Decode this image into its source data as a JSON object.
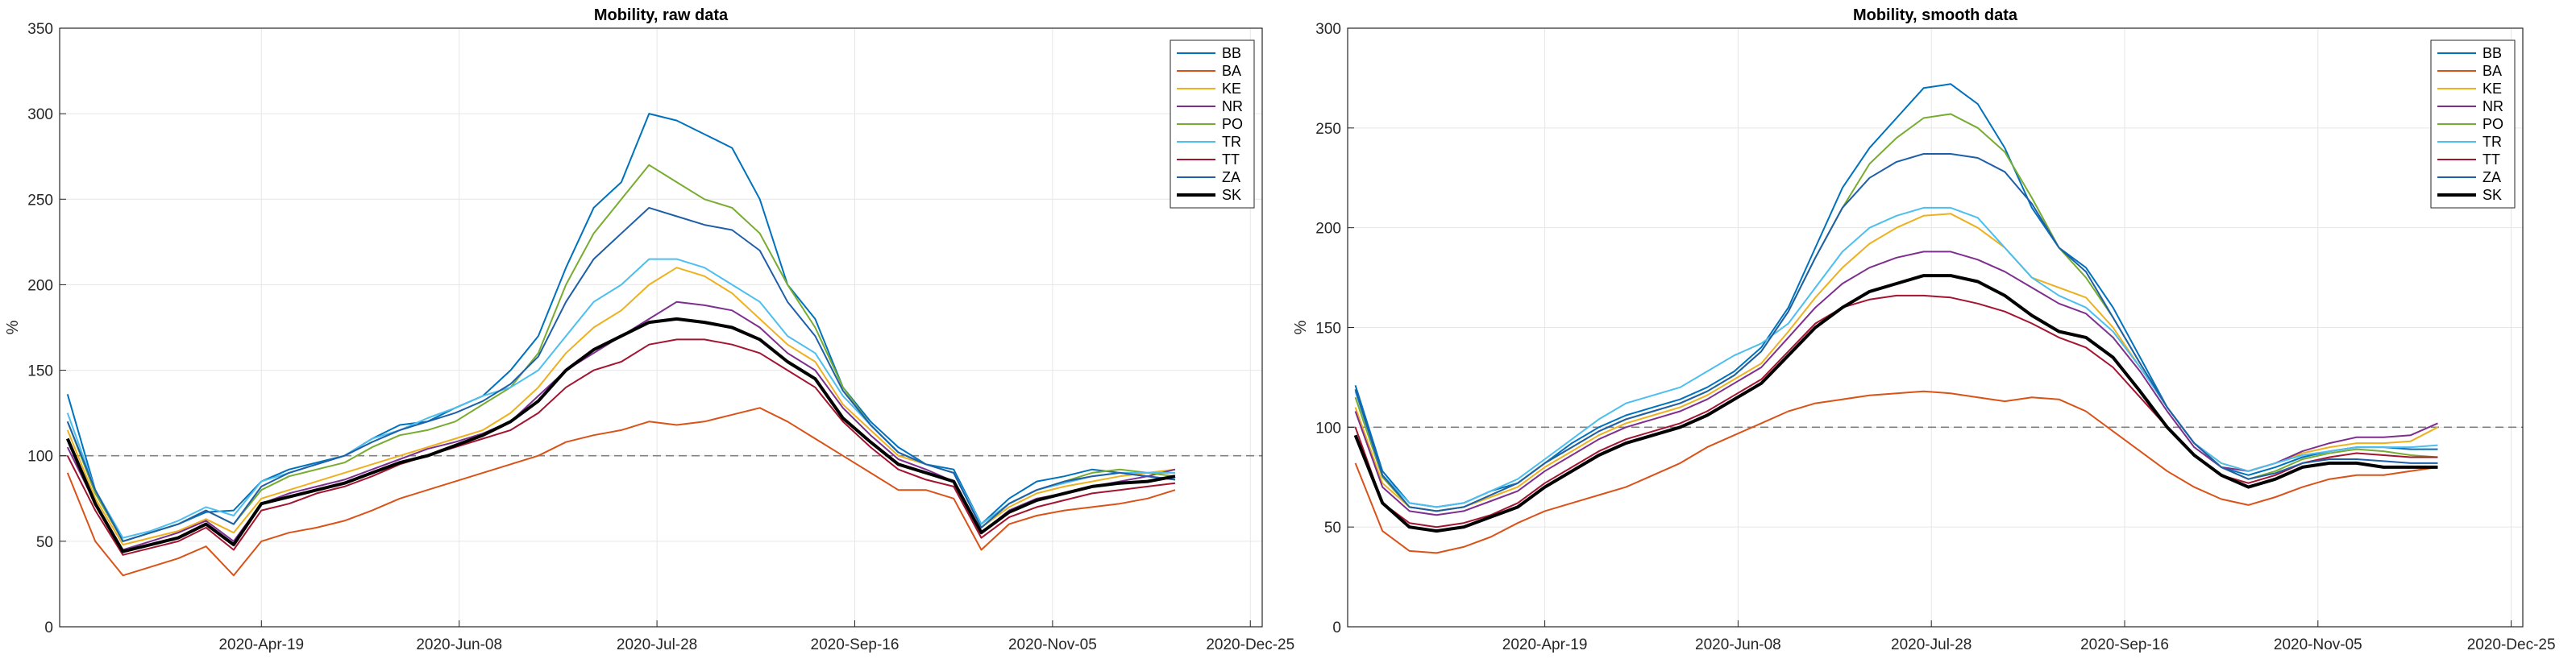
{
  "chart_data": [
    {
      "type": "line",
      "title": "Mobility, raw data",
      "xlabel": "",
      "ylabel": "%",
      "xlim": [
        "2020-02-28",
        "2020-12-28"
      ],
      "ylim": [
        0,
        350
      ],
      "yticks": [
        0,
        50,
        100,
        150,
        200,
        250,
        300,
        350
      ],
      "xticks": [
        "2020-Apr-19",
        "2020-Jun-08",
        "2020-Jul-28",
        "2020-Sep-16",
        "2020-Nov-05",
        "2020-Dec-25"
      ],
      "reference_line": 100,
      "grid": true,
      "legend_location": "top-right",
      "x": [
        "2020-03-01",
        "2020-03-08",
        "2020-03-15",
        "2020-03-22",
        "2020-03-29",
        "2020-04-05",
        "2020-04-12",
        "2020-04-19",
        "2020-04-26",
        "2020-05-03",
        "2020-05-10",
        "2020-05-17",
        "2020-05-24",
        "2020-05-31",
        "2020-06-07",
        "2020-06-14",
        "2020-06-21",
        "2020-06-28",
        "2020-07-05",
        "2020-07-12",
        "2020-07-19",
        "2020-07-26",
        "2020-08-02",
        "2020-08-09",
        "2020-08-16",
        "2020-08-23",
        "2020-08-30",
        "2020-09-06",
        "2020-09-13",
        "2020-09-20",
        "2020-09-27",
        "2020-10-04",
        "2020-10-11",
        "2020-10-18",
        "2020-10-25",
        "2020-11-01",
        "2020-11-08",
        "2020-11-15",
        "2020-11-22",
        "2020-11-29",
        "2020-12-06"
      ],
      "series": [
        {
          "name": "BB",
          "values": [
            136,
            80,
            50,
            55,
            60,
            67,
            68,
            85,
            92,
            96,
            100,
            110,
            118,
            120,
            128,
            135,
            150,
            170,
            210,
            245,
            260,
            300,
            296,
            288,
            280,
            250,
            200,
            180,
            140,
            120,
            105,
            95,
            92,
            60,
            75,
            85,
            88,
            92,
            90,
            88,
            86
          ]
        },
        {
          "name": "BA",
          "values": [
            90,
            50,
            30,
            35,
            40,
            47,
            30,
            50,
            55,
            58,
            62,
            68,
            75,
            80,
            85,
            90,
            95,
            100,
            108,
            112,
            115,
            120,
            118,
            120,
            124,
            128,
            120,
            110,
            100,
            90,
            80,
            80,
            75,
            45,
            60,
            65,
            68,
            70,
            72,
            75,
            80
          ]
        },
        {
          "name": "KE",
          "values": [
            115,
            75,
            48,
            52,
            56,
            63,
            55,
            75,
            80,
            85,
            90,
            95,
            100,
            105,
            110,
            115,
            125,
            140,
            160,
            175,
            185,
            200,
            210,
            205,
            195,
            180,
            165,
            155,
            130,
            115,
            100,
            95,
            90,
            58,
            70,
            78,
            82,
            85,
            88,
            90,
            92
          ]
        },
        {
          "name": "NR",
          "values": [
            105,
            72,
            45,
            50,
            55,
            62,
            50,
            72,
            78,
            82,
            86,
            92,
            98,
            104,
            108,
            113,
            120,
            135,
            150,
            160,
            170,
            180,
            190,
            188,
            185,
            175,
            160,
            150,
            128,
            112,
            98,
            92,
            85,
            55,
            68,
            75,
            78,
            82,
            85,
            88,
            92
          ]
        },
        {
          "name": "PO",
          "values": [
            120,
            78,
            50,
            55,
            60,
            68,
            60,
            80,
            88,
            92,
            96,
            105,
            112,
            115,
            120,
            130,
            140,
            160,
            200,
            230,
            250,
            270,
            260,
            250,
            245,
            230,
            200,
            175,
            140,
            118,
            102,
            95,
            90,
            58,
            72,
            80,
            85,
            90,
            92,
            90,
            88
          ]
        },
        {
          "name": "TR",
          "values": [
            125,
            80,
            52,
            56,
            62,
            70,
            65,
            85,
            90,
            95,
            100,
            110,
            115,
            122,
            128,
            135,
            140,
            150,
            170,
            190,
            200,
            215,
            215,
            210,
            200,
            190,
            170,
            160,
            135,
            118,
            102,
            95,
            90,
            60,
            72,
            80,
            84,
            88,
            90,
            90,
            90
          ]
        },
        {
          "name": "TT",
          "values": [
            100,
            68,
            42,
            46,
            50,
            58,
            45,
            68,
            72,
            78,
            82,
            88,
            95,
            100,
            105,
            110,
            115,
            125,
            140,
            150,
            155,
            165,
            168,
            168,
            165,
            160,
            150,
            140,
            120,
            105,
            92,
            86,
            82,
            52,
            64,
            70,
            74,
            78,
            80,
            82,
            84
          ]
        },
        {
          "name": "ZA",
          "values": [
            120,
            80,
            50,
            55,
            60,
            68,
            60,
            82,
            90,
            95,
            100,
            108,
            115,
            120,
            125,
            132,
            142,
            158,
            190,
            215,
            230,
            245,
            240,
            235,
            232,
            220,
            190,
            170,
            138,
            118,
            102,
            95,
            90,
            58,
            72,
            80,
            85,
            88,
            90,
            88,
            86
          ]
        },
        {
          "name": "SK",
          "values": [
            110,
            72,
            44,
            48,
            52,
            60,
            48,
            72,
            76,
            80,
            84,
            90,
            96,
            100,
            106,
            112,
            120,
            132,
            150,
            162,
            170,
            178,
            180,
            178,
            175,
            168,
            155,
            145,
            122,
            108,
            95,
            90,
            85,
            55,
            67,
            74,
            78,
            82,
            84,
            85,
            88
          ]
        }
      ]
    },
    {
      "type": "line",
      "title": "Mobility, smooth data",
      "xlabel": "",
      "ylabel": "%",
      "xlim": [
        "2020-02-28",
        "2020-12-28"
      ],
      "ylim": [
        0,
        300
      ],
      "yticks": [
        0,
        50,
        100,
        150,
        200,
        250,
        300
      ],
      "xticks": [
        "2020-Apr-19",
        "2020-Jun-08",
        "2020-Jul-28",
        "2020-Sep-16",
        "2020-Nov-05",
        "2020-Dec-25"
      ],
      "reference_line": 100,
      "grid": true,
      "legend_location": "top-right",
      "x": [
        "2020-03-01",
        "2020-03-08",
        "2020-03-15",
        "2020-03-22",
        "2020-03-29",
        "2020-04-05",
        "2020-04-12",
        "2020-04-19",
        "2020-04-26",
        "2020-05-03",
        "2020-05-10",
        "2020-05-17",
        "2020-05-24",
        "2020-05-31",
        "2020-06-07",
        "2020-06-14",
        "2020-06-21",
        "2020-06-28",
        "2020-07-05",
        "2020-07-12",
        "2020-07-19",
        "2020-07-26",
        "2020-08-02",
        "2020-08-09",
        "2020-08-16",
        "2020-08-23",
        "2020-08-30",
        "2020-09-06",
        "2020-09-13",
        "2020-09-20",
        "2020-09-27",
        "2020-10-04",
        "2020-10-11",
        "2020-10-18",
        "2020-10-25",
        "2020-11-01",
        "2020-11-08",
        "2020-11-15",
        "2020-11-22",
        "2020-11-29",
        "2020-12-06"
      ],
      "series": [
        {
          "name": "BB",
          "values": [
            121,
            78,
            62,
            60,
            62,
            68,
            72,
            82,
            92,
            100,
            106,
            110,
            114,
            120,
            128,
            140,
            160,
            190,
            220,
            240,
            255,
            270,
            272,
            262,
            240,
            210,
            190,
            180,
            160,
            135,
            110,
            92,
            80,
            76,
            80,
            85,
            88,
            90,
            90,
            89,
            89
          ]
        },
        {
          "name": "BA",
          "values": [
            82,
            48,
            38,
            37,
            40,
            45,
            52,
            58,
            62,
            66,
            70,
            76,
            82,
            90,
            96,
            102,
            108,
            112,
            114,
            116,
            117,
            118,
            117,
            115,
            113,
            115,
            114,
            108,
            98,
            88,
            78,
            70,
            64,
            61,
            65,
            70,
            74,
            76,
            76,
            78,
            80
          ]
        },
        {
          "name": "KE",
          "values": [
            110,
            72,
            60,
            58,
            60,
            65,
            70,
            80,
            88,
            96,
            102,
            106,
            110,
            116,
            124,
            132,
            148,
            165,
            180,
            192,
            200,
            206,
            207,
            200,
            190,
            175,
            170,
            165,
            150,
            130,
            110,
            92,
            82,
            78,
            82,
            87,
            90,
            92,
            92,
            93,
            100
          ]
        },
        {
          "name": "NR",
          "values": [
            108,
            70,
            58,
            56,
            58,
            63,
            68,
            78,
            86,
            94,
            100,
            104,
            108,
            114,
            122,
            130,
            145,
            160,
            172,
            180,
            185,
            188,
            188,
            184,
            178,
            170,
            162,
            157,
            145,
            128,
            108,
            90,
            80,
            78,
            82,
            88,
            92,
            95,
            95,
            96,
            102
          ]
        },
        {
          "name": "PO",
          "values": [
            115,
            75,
            60,
            58,
            60,
            66,
            72,
            82,
            90,
            98,
            104,
            108,
            112,
            118,
            126,
            138,
            158,
            185,
            210,
            232,
            245,
            255,
            257,
            250,
            238,
            215,
            190,
            175,
            155,
            132,
            110,
            92,
            80,
            74,
            78,
            84,
            87,
            89,
            88,
            86,
            85
          ]
        },
        {
          "name": "TR",
          "values": [
            118,
            76,
            62,
            60,
            62,
            68,
            74,
            84,
            94,
            104,
            112,
            116,
            120,
            128,
            136,
            142,
            152,
            170,
            188,
            200,
            206,
            210,
            210,
            205,
            190,
            175,
            166,
            160,
            148,
            130,
            110,
            92,
            82,
            78,
            82,
            86,
            88,
            90,
            90,
            90,
            91
          ]
        },
        {
          "name": "TT",
          "values": [
            100,
            62,
            52,
            50,
            52,
            56,
            62,
            72,
            80,
            88,
            94,
            98,
            102,
            108,
            116,
            124,
            138,
            152,
            160,
            164,
            166,
            166,
            165,
            162,
            158,
            152,
            145,
            140,
            130,
            115,
            100,
            86,
            76,
            72,
            76,
            82,
            85,
            87,
            86,
            85,
            85
          ]
        },
        {
          "name": "ZA",
          "values": [
            119,
            76,
            60,
            58,
            60,
            66,
            72,
            82,
            90,
            98,
            104,
            108,
            112,
            118,
            126,
            138,
            158,
            185,
            210,
            225,
            233,
            237,
            237,
            235,
            228,
            212,
            190,
            178,
            155,
            132,
            110,
            92,
            80,
            74,
            77,
            82,
            84,
            84,
            83,
            82,
            82
          ]
        },
        {
          "name": "SK",
          "values": [
            96,
            62,
            50,
            48,
            50,
            55,
            60,
            70,
            78,
            86,
            92,
            96,
            100,
            106,
            114,
            122,
            136,
            150,
            160,
            168,
            172,
            176,
            176,
            173,
            166,
            156,
            148,
            145,
            135,
            118,
            100,
            86,
            76,
            70,
            74,
            80,
            82,
            82,
            80,
            80,
            80
          ]
        }
      ]
    }
  ],
  "series_colors": {
    "BB": "#0072BD",
    "BA": "#D95319",
    "KE": "#EDB120",
    "NR": "#7E2F8E",
    "PO": "#77AC30",
    "TR": "#4DBEEE",
    "TT": "#A2142F",
    "ZA": "#1F5FA8",
    "SK": "#000000"
  }
}
